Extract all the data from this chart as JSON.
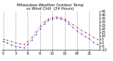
{
  "title_line1": "Milwaukee Weather Outdoor Temp",
  "title_line2": "vs Wind Chill  (24 Hours)",
  "hours": [
    0,
    1,
    2,
    3,
    4,
    5,
    6,
    7,
    8,
    9,
    10,
    11,
    12,
    13,
    14,
    15,
    16,
    17,
    18,
    19,
    20,
    21,
    22,
    23
  ],
  "temp": [
    5,
    4,
    2,
    0,
    -1,
    -2,
    2,
    8,
    16,
    24,
    30,
    34,
    36,
    37,
    36,
    34,
    30,
    26,
    22,
    18,
    15,
    12,
    8,
    5
  ],
  "wind_chill": [
    2,
    0,
    -3,
    -5,
    -6,
    -7,
    -2,
    4,
    12,
    20,
    27,
    32,
    34,
    35,
    34,
    32,
    27,
    22,
    17,
    13,
    9,
    6,
    1,
    -2
  ],
  "temp_color": "#cc0000",
  "wind_chill_color": "#0000cc",
  "bg_color": "#ffffff",
  "grid_color": "#888888",
  "ylim_min": -10,
  "ylim_max": 45,
  "ytick_step": 5,
  "title_fontsize": 4.0,
  "tick_fontsize": 3.5,
  "marker_size": 1.2,
  "grid_positions": [
    0,
    3,
    6,
    9,
    12,
    15,
    18,
    21
  ]
}
